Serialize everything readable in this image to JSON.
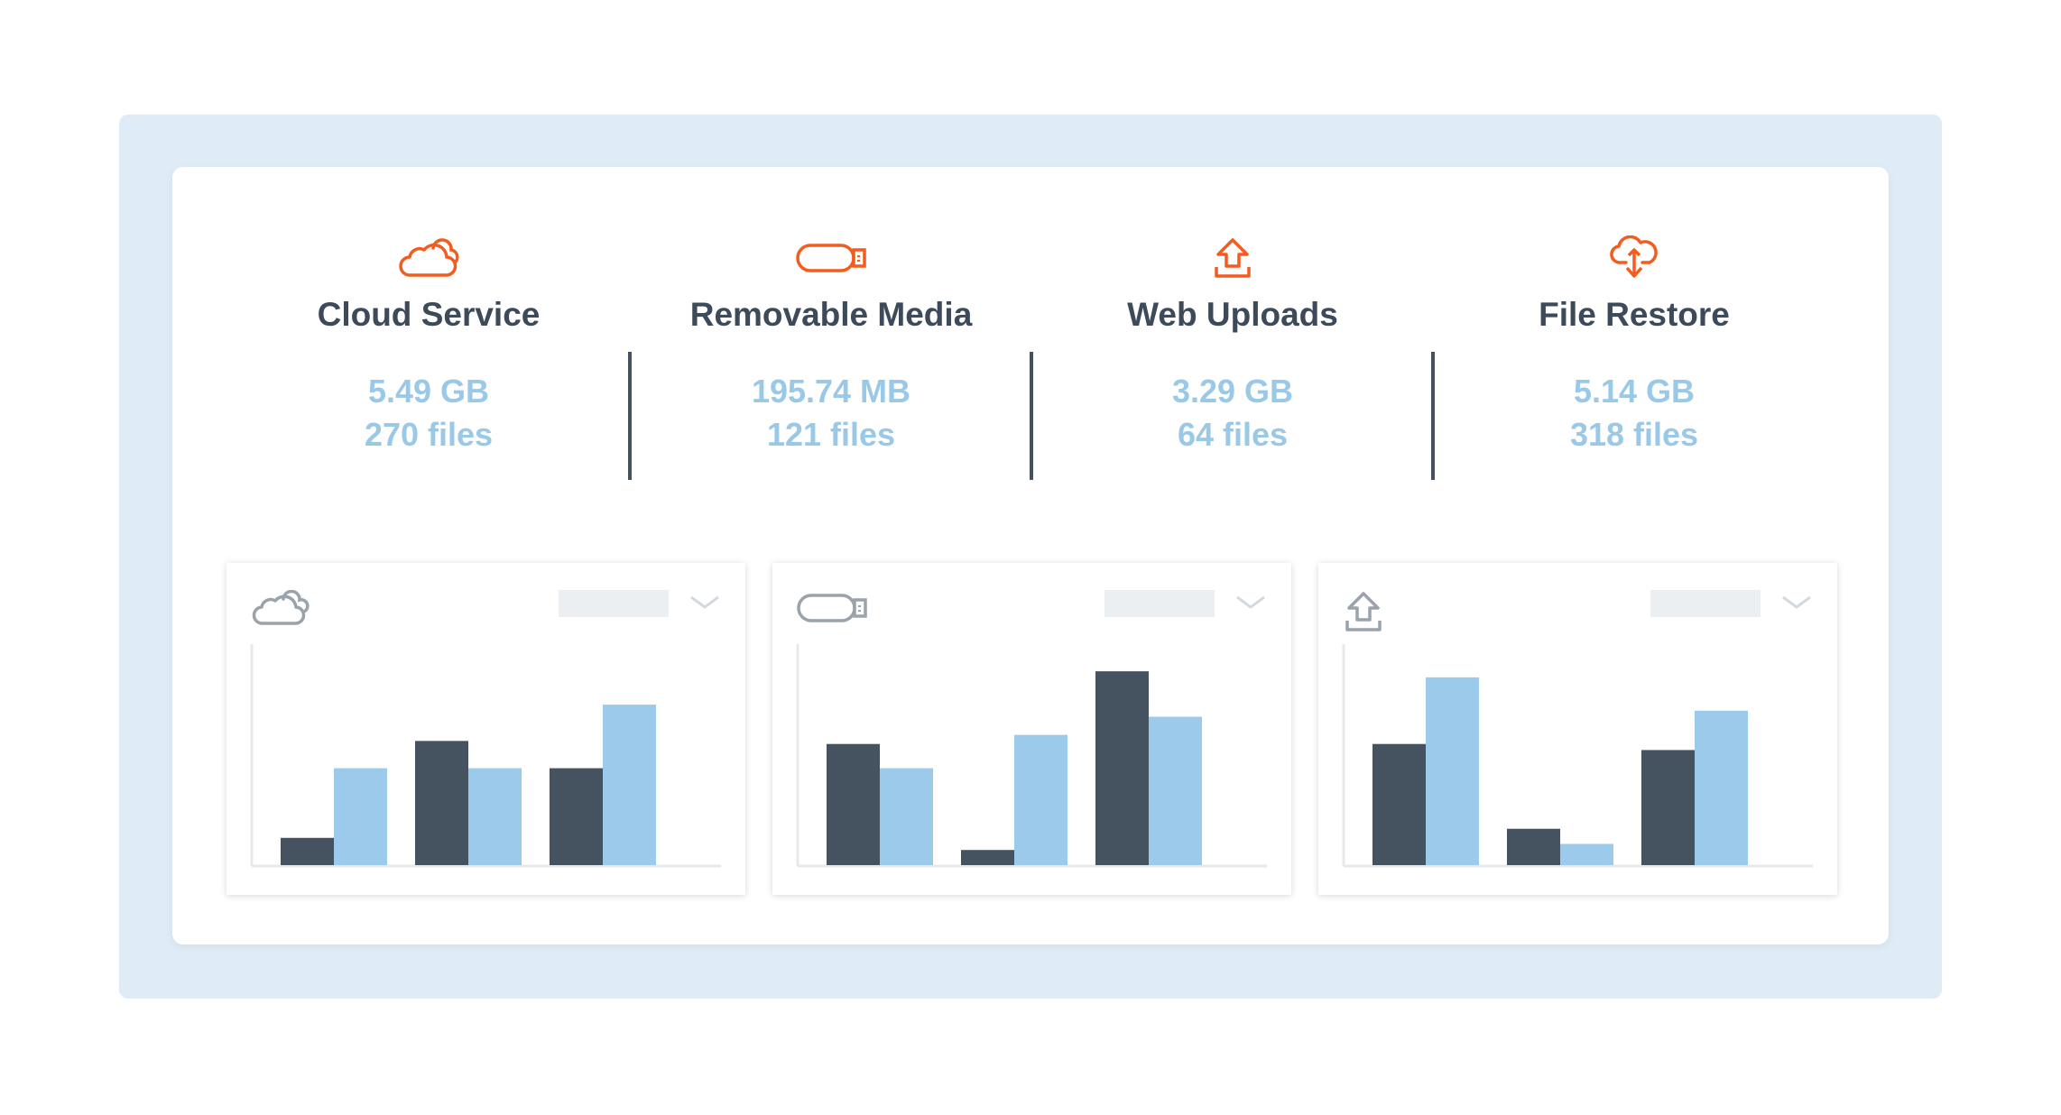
{
  "colors": {
    "accent": "#f25c1f",
    "title": "#3d4a5a",
    "value": "#9ac8e7",
    "bar_dark": "#45525f",
    "bar_light": "#9ccaea",
    "icon_gray": "#9aa2ab"
  },
  "stats": [
    {
      "icon": "cloud-icon",
      "title": "Cloud Service",
      "size": "5.49 GB",
      "files": "270 files"
    },
    {
      "icon": "usb-drive-icon",
      "title": "Removable Media",
      "size": "195.74 MB",
      "files": "121 files"
    },
    {
      "icon": "upload-icon",
      "title": "Web Uploads",
      "size": "3.29 GB",
      "files": "64 files"
    },
    {
      "icon": "cloud-restore-icon",
      "title": "File Restore",
      "size": "5.14 GB",
      "files": "318 files"
    }
  ],
  "chart_data": [
    {
      "type": "bar",
      "icon": "cloud-icon",
      "series": [
        {
          "values": [
            9,
            41,
            32
          ]
        },
        {
          "values": [
            32,
            32,
            53
          ]
        }
      ],
      "ylim": [
        0,
        70
      ]
    },
    {
      "type": "bar",
      "icon": "usb-drive-icon",
      "series": [
        {
          "values": [
            40,
            5,
            64
          ]
        },
        {
          "values": [
            32,
            43,
            49
          ]
        }
      ],
      "ylim": [
        0,
        70
      ]
    },
    {
      "type": "bar",
      "icon": "upload-icon",
      "series": [
        {
          "values": [
            40,
            12,
            38
          ]
        },
        {
          "values": [
            62,
            7,
            51
          ]
        }
      ],
      "ylim": [
        0,
        70
      ]
    }
  ]
}
